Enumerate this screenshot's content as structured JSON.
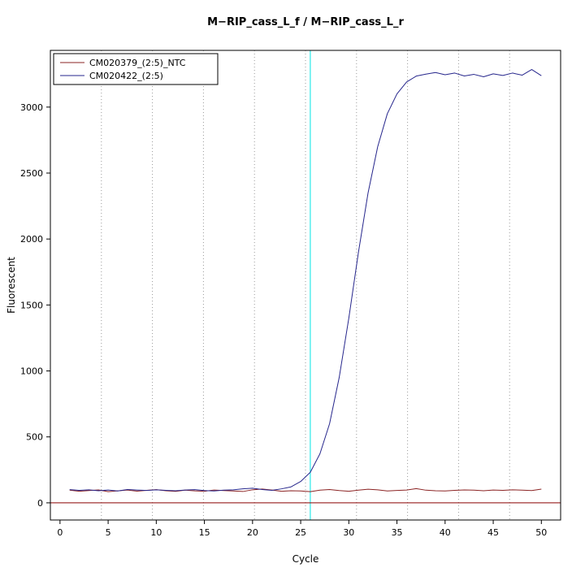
{
  "figure": {
    "background": "#ffffff"
  },
  "chart_data": {
    "type": "line",
    "title": "M−RIP_cass_L_f / M−RIP_cass_L_r",
    "xlabel": "Cycle",
    "ylabel": "Fluorescent",
    "xlim": [
      -1,
      52
    ],
    "ylim": [
      -130,
      3430
    ],
    "x_ticks": [
      0,
      5,
      10,
      15,
      20,
      25,
      30,
      35,
      40,
      45,
      50
    ],
    "y_ticks": [
      0,
      500,
      1000,
      1500,
      2000,
      2500,
      3000
    ],
    "grid": "vertical-dotted",
    "grid_x": [
      4.3,
      9.6,
      14.9,
      20.2,
      25.5,
      30.8,
      36.1,
      41.4,
      46.7
    ],
    "grid_color": "#999999",
    "legend_position": "top-left",
    "threshold_line": {
      "y": 0,
      "color": "#8b0000"
    },
    "ct_line": {
      "x": 26,
      "color": "#00e5e5"
    },
    "x": [
      1,
      2,
      3,
      4,
      5,
      6,
      7,
      8,
      9,
      10,
      11,
      12,
      13,
      14,
      15,
      16,
      17,
      18,
      19,
      20,
      21,
      22,
      23,
      24,
      25,
      26,
      27,
      28,
      29,
      30,
      31,
      32,
      33,
      34,
      35,
      36,
      37,
      38,
      39,
      40,
      41,
      42,
      43,
      44,
      45,
      46,
      47,
      48,
      49,
      50
    ],
    "series": [
      {
        "name": "CM020379_(2:5)_NTC",
        "color": "#8b2323",
        "values": [
          96,
          88,
          93,
          98,
          85,
          91,
          97,
          89,
          95,
          100,
          92,
          87,
          96,
          91,
          88,
          97,
          93,
          90,
          86,
          99,
          105,
          97,
          88,
          92,
          90,
          85,
          96,
          101,
          93,
          88,
          96,
          103,
          99,
          90,
          94,
          97,
          108,
          96,
          92,
          90,
          95,
          98,
          96,
          92,
          97,
          95,
          99,
          96,
          93,
          104
        ]
      },
      {
        "name": "CM020422_(2:5)",
        "color": "#26268c",
        "values": [
          100,
          95,
          99,
          92,
          97,
          90,
          101,
          97,
          94,
          99,
          95,
          92,
          97,
          100,
          93,
          90,
          96,
          99,
          106,
          111,
          101,
          95,
          106,
          121,
          162,
          232,
          372,
          600,
          950,
          1400,
          1900,
          2350,
          2700,
          2950,
          3100,
          3190,
          3235,
          3250,
          3262,
          3245,
          3258,
          3236,
          3248,
          3230,
          3252,
          3240,
          3258,
          3242,
          3285,
          3238
        ]
      }
    ]
  }
}
